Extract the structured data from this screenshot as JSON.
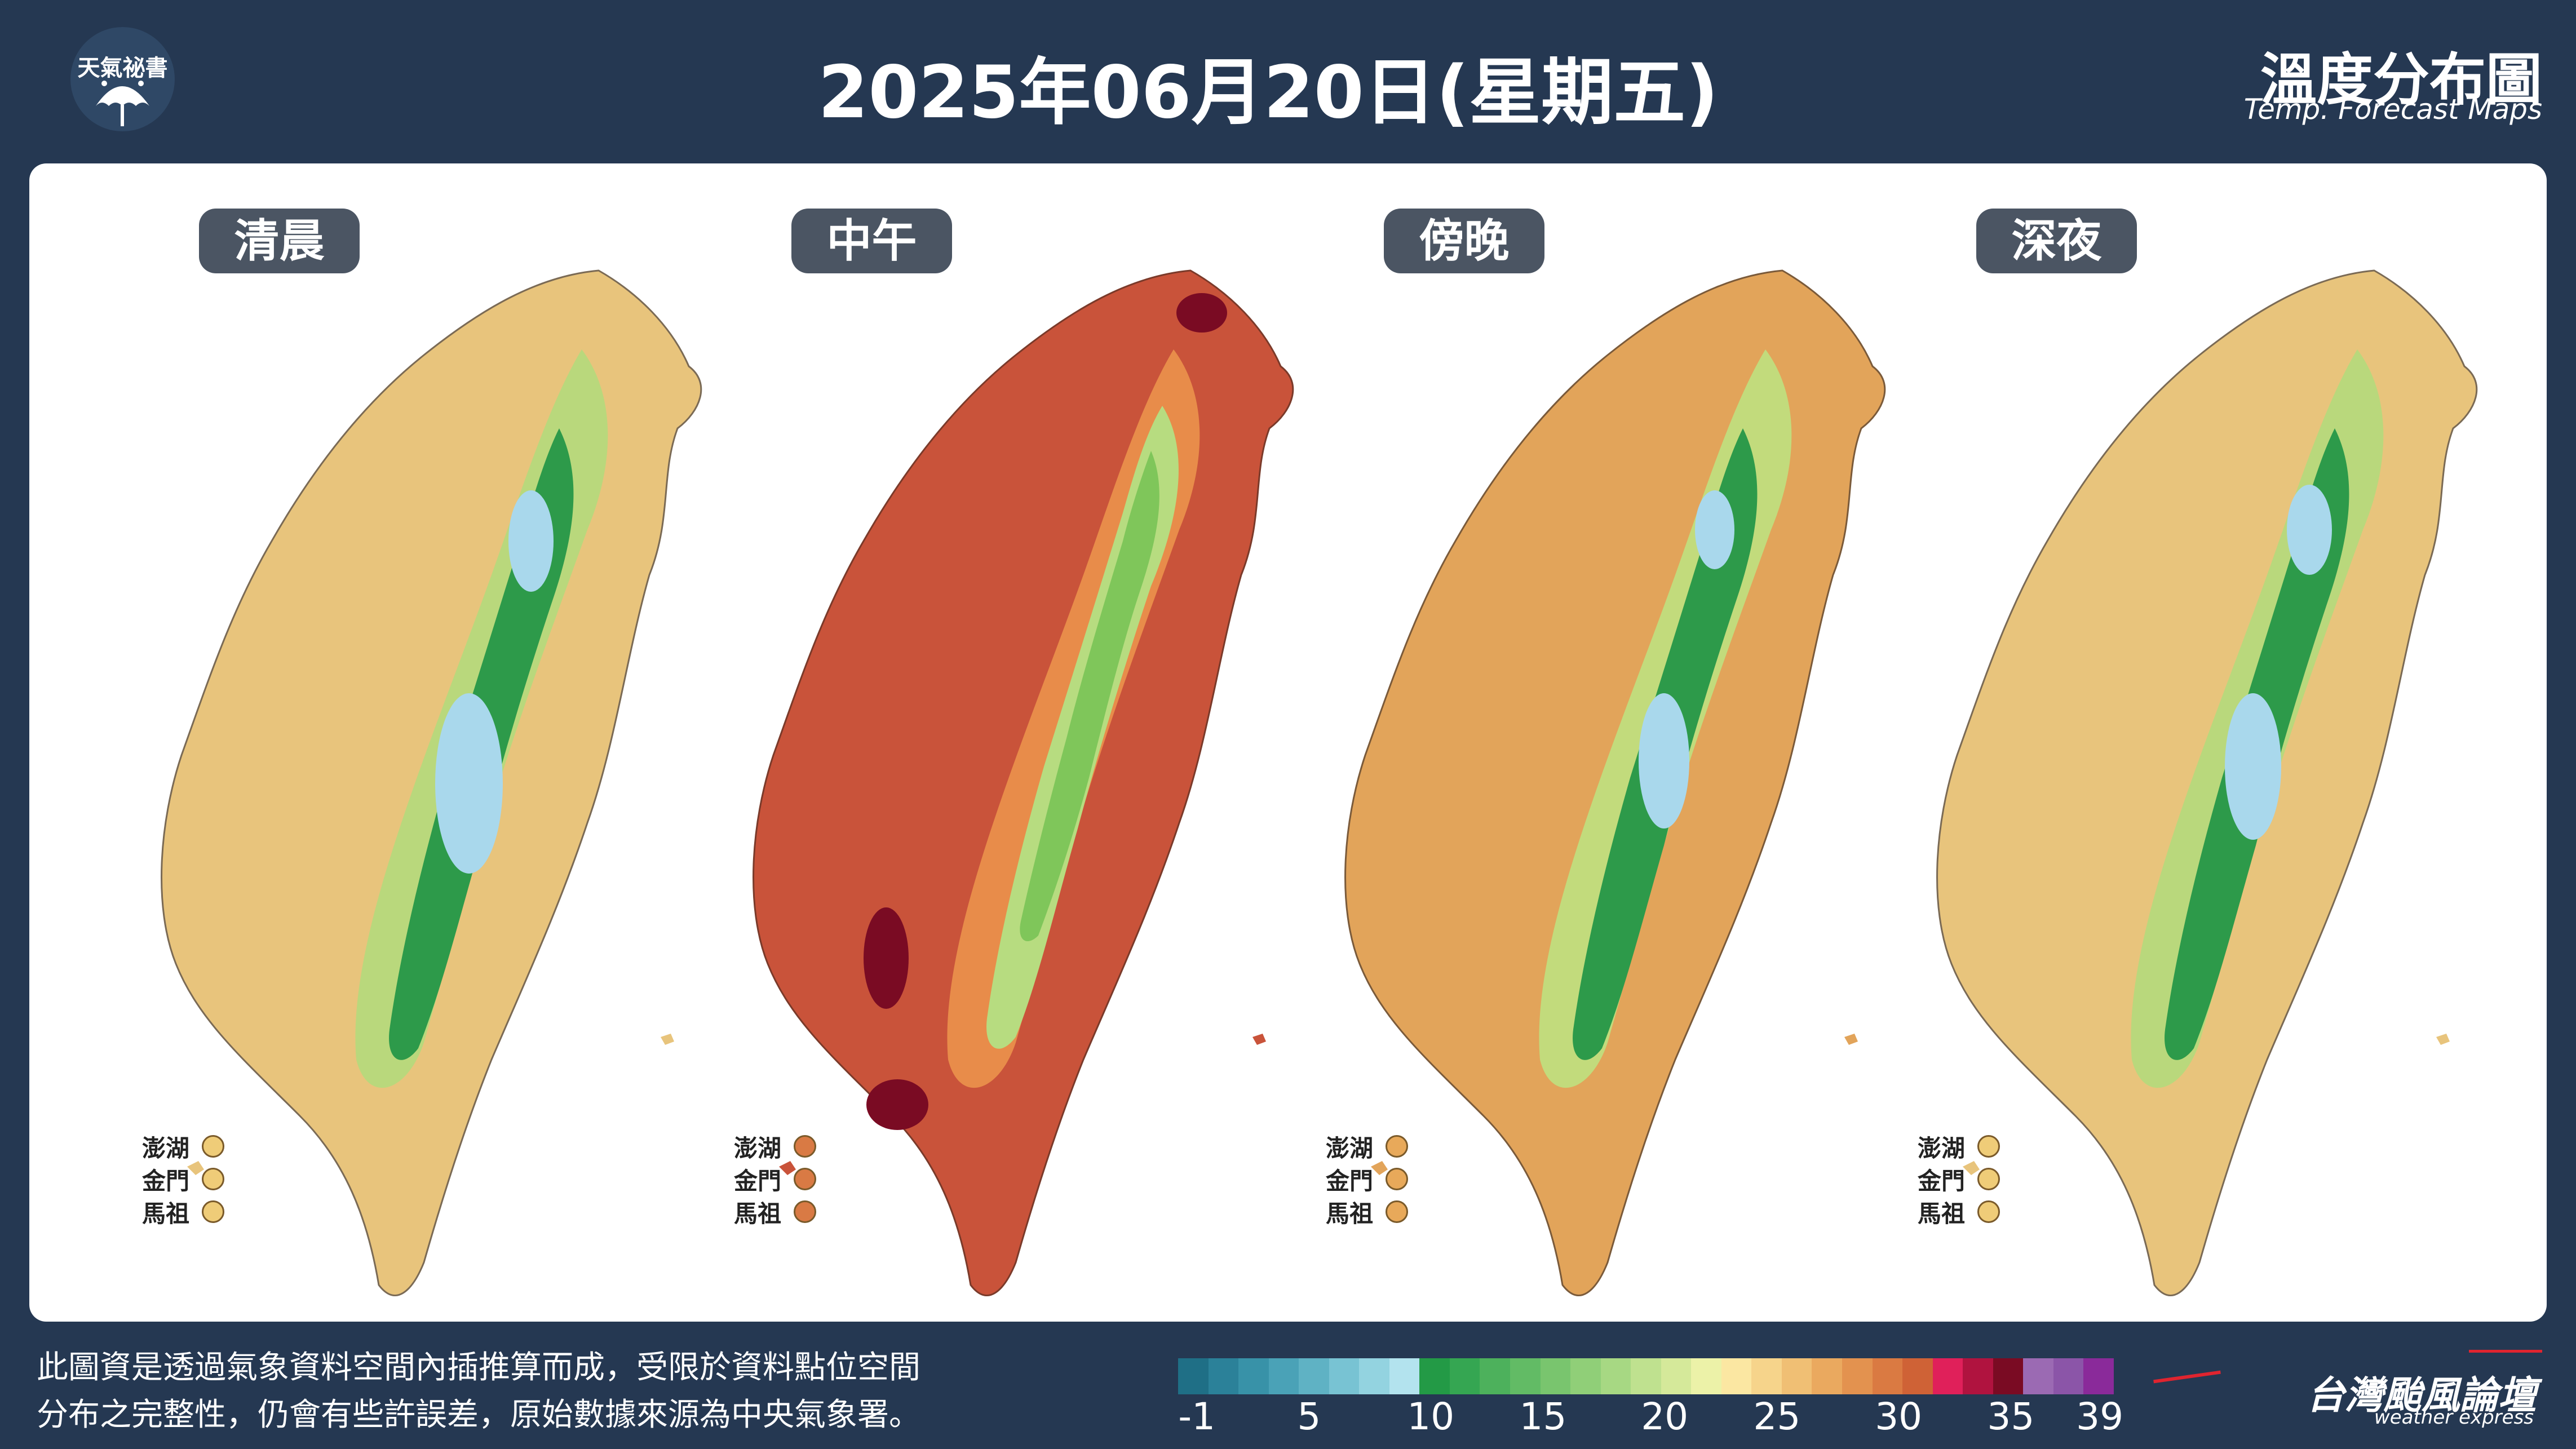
{
  "header": {
    "logo_text": "天氣祕書",
    "title": "2025年06月20日(星期五)",
    "map_title": "溫度分布圖",
    "map_subtitle": "Temp. Forecast Maps"
  },
  "panels": [
    {
      "label": "清晨",
      "palette": {
        "lowland": "#e8c47c",
        "mid": "#b9d87c",
        "mountain": "#2d9a4a",
        "peak": "#a9d8ec"
      }
    },
    {
      "label": "中午",
      "palette": {
        "lowland": "#c9533a",
        "mid": "#e88c4a",
        "mountain": "#7fc65a",
        "peak": "#2d9a4a"
      }
    },
    {
      "label": "傍晚",
      "palette": {
        "lowland": "#e2a45a",
        "mid": "#c2db7c",
        "mountain": "#2d9a4a",
        "peak": "#a9d8ec"
      }
    },
    {
      "label": "深夜",
      "palette": {
        "lowland": "#e8c47c",
        "mid": "#b9d87c",
        "mountain": "#2d9a4a",
        "peak": "#a9d8ec"
      }
    }
  ],
  "islands": [
    {
      "name": "澎湖"
    },
    {
      "name": "金門"
    },
    {
      "name": "馬祖"
    }
  ],
  "island_colors": [
    [
      "#efcc78",
      "#efcc78",
      "#efcc78"
    ],
    [
      "#d97a44",
      "#d97a44",
      "#d97a44"
    ],
    [
      "#e8a95a",
      "#e8a95a",
      "#e8a95a"
    ],
    [
      "#efcc78",
      "#efcc78",
      "#efcc78"
    ]
  ],
  "footnote": {
    "line1": "此圖資是透過氣象資料空間內插推算而成，受限於資料點位空間",
    "line2": "分布之完整性，仍會有些許誤差，原始數據來源為中央氣象署。"
  },
  "legend": {
    "colors": [
      "#1f6f86",
      "#2b8199",
      "#3892a8",
      "#4aa2b7",
      "#5fb2c4",
      "#78c3d3",
      "#93d3e0",
      "#b3e3ee",
      "#239a46",
      "#35a652",
      "#4db15c",
      "#62bb65",
      "#79c56e",
      "#90cf78",
      "#a7d883",
      "#bfe18f",
      "#d5e99a",
      "#ecf2a8",
      "#fbe7a2",
      "#f6d48b",
      "#f0bf74",
      "#eaa95f",
      "#e3924f",
      "#da7a42",
      "#cf6236",
      "#e0205a",
      "#b0133f",
      "#7a0b23",
      "#9b6ab3",
      "#8b55a8",
      "#8a2a9a"
    ],
    "labels": [
      "-1",
      "5",
      "10",
      "15",
      "20",
      "25",
      "30",
      "35",
      "39"
    ]
  },
  "brand": {
    "name": "台灣颱風論壇",
    "sub": "weather express",
    "tag": "天氣祕書"
  }
}
